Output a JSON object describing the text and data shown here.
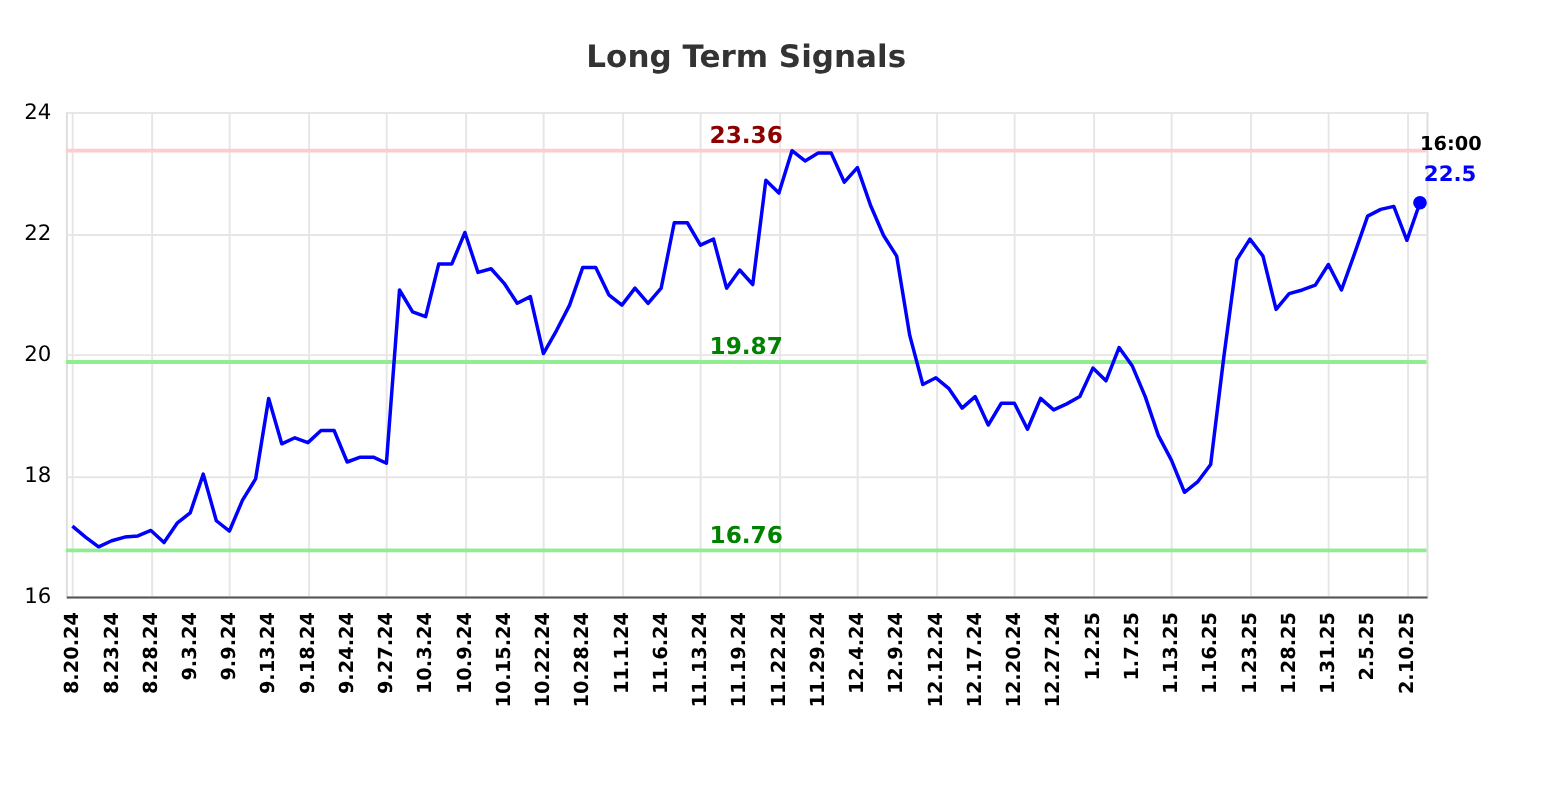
{
  "chart_data": {
    "type": "line",
    "title": "Long Term Signals",
    "categories": [
      "8.20.24",
      null,
      null,
      "8.23.24",
      null,
      null,
      "8.28.24",
      null,
      null,
      "9.3.24",
      null,
      null,
      "9.9.24",
      null,
      null,
      "9.13.24",
      null,
      null,
      "9.18.24",
      null,
      null,
      "9.24.24",
      null,
      null,
      "9.27.24",
      null,
      null,
      "10.3.24",
      null,
      null,
      "10.9.24",
      null,
      null,
      "10.15.24",
      null,
      null,
      "10.22.24",
      null,
      null,
      "10.28.24",
      null,
      null,
      "11.1.24",
      null,
      null,
      "11.6.24",
      null,
      null,
      "11.13.24",
      null,
      null,
      "11.19.24",
      null,
      null,
      "11.22.24",
      null,
      null,
      "11.29.24",
      null,
      null,
      "12.4.24",
      null,
      null,
      "12.9.24",
      null,
      null,
      "12.12.24",
      null,
      null,
      "12.17.24",
      null,
      null,
      "12.20.24",
      null,
      null,
      "12.27.24",
      null,
      null,
      "1.2.25",
      null,
      null,
      "1.7.25",
      null,
      null,
      "1.13.25",
      null,
      null,
      "1.16.25",
      null,
      null,
      "1.23.25",
      null,
      null,
      "1.28.25",
      null,
      null,
      "1.31.25",
      null,
      null,
      "2.5.25",
      null,
      null,
      "2.10.25",
      null
    ],
    "series": [
      {
        "color": "#0000ff",
        "values": [
          17.16,
          16.98,
          16.82,
          16.92,
          16.98,
          17.0,
          17.09,
          16.89,
          17.21,
          17.38,
          18.02,
          17.25,
          17.08,
          17.59,
          17.94,
          19.27,
          18.52,
          18.62,
          18.54,
          18.74,
          18.74,
          18.22,
          18.3,
          18.3,
          18.2,
          21.06,
          20.7,
          20.62,
          21.49,
          21.49,
          22.01,
          21.35,
          21.41,
          21.17,
          20.84,
          20.95,
          20.01,
          20.39,
          20.81,
          21.43,
          21.43,
          20.98,
          20.81,
          21.09,
          20.84,
          21.09,
          22.17,
          22.17,
          21.8,
          21.9,
          21.09,
          21.39,
          21.15,
          22.87,
          22.66,
          23.36,
          23.19,
          23.32,
          23.32,
          22.84,
          23.08,
          22.46,
          21.96,
          21.62,
          20.31,
          19.5,
          19.61,
          19.43,
          19.11,
          19.3,
          18.83,
          19.19,
          19.19,
          18.76,
          19.27,
          19.08,
          19.18,
          19.3,
          19.77,
          19.56,
          20.11,
          19.81,
          19.3,
          18.66,
          18.25,
          17.72,
          17.89,
          18.18,
          19.94,
          21.56,
          21.9,
          21.62,
          20.74,
          21.0,
          21.06,
          21.14,
          21.48,
          21.06,
          21.66,
          22.28,
          22.39,
          22.44,
          21.88,
          22.5
        ]
      },
      {
        "type": "scatter",
        "color": "#0000ff",
        "values": [
          null,
          null,
          null,
          null,
          null,
          null,
          null,
          null,
          null,
          null,
          null,
          null,
          null,
          null,
          null,
          null,
          null,
          null,
          null,
          null,
          null,
          null,
          null,
          null,
          null,
          null,
          null,
          null,
          null,
          null,
          null,
          null,
          null,
          null,
          null,
          null,
          null,
          null,
          null,
          null,
          null,
          null,
          null,
          null,
          null,
          null,
          null,
          null,
          null,
          null,
          null,
          null,
          null,
          null,
          null,
          null,
          null,
          null,
          null,
          null,
          null,
          null,
          null,
          null,
          null,
          null,
          null,
          null,
          null,
          null,
          null,
          null,
          null,
          null,
          null,
          null,
          null,
          null,
          null,
          null,
          null,
          null,
          null,
          null,
          null,
          null,
          null,
          null,
          null,
          null,
          null,
          null,
          null,
          null,
          null,
          null,
          null,
          null,
          null,
          null,
          null,
          null,
          null,
          22.5
        ],
        "value_labels": [
          null,
          null,
          null,
          null,
          null,
          null,
          null,
          null,
          null,
          null,
          null,
          null,
          null,
          null,
          null,
          null,
          null,
          null,
          null,
          null,
          null,
          null,
          null,
          null,
          null,
          null,
          null,
          null,
          null,
          null,
          null,
          null,
          null,
          null,
          null,
          null,
          null,
          null,
          null,
          null,
          null,
          null,
          null,
          null,
          null,
          null,
          null,
          null,
          null,
          null,
          null,
          null,
          null,
          null,
          null,
          null,
          null,
          null,
          null,
          null,
          null,
          null,
          null,
          null,
          null,
          null,
          null,
          null,
          null,
          null,
          null,
          null,
          null,
          null,
          null,
          null,
          null,
          null,
          null,
          null,
          null,
          null,
          null,
          null,
          null,
          null,
          null,
          null,
          null,
          null,
          null,
          null,
          null,
          null,
          null,
          null,
          null,
          null,
          null,
          null,
          null,
          null,
          null,
          "22.5"
        ]
      }
    ],
    "ylim": [
      16,
      24
    ],
    "yticks": [
      16,
      18,
      20,
      22,
      24
    ],
    "grid": true,
    "ref_lines": [
      {
        "axis": "y",
        "value": 23.36,
        "label": "23.36",
        "color": "#ffcccc"
      },
      {
        "axis": "y",
        "value": 19.87,
        "label": "19.87",
        "color": "#90ee90"
      },
      {
        "axis": "y",
        "value": 16.76,
        "label": "16.76",
        "color": "#90ee90"
      }
    ],
    "annotations": [
      "16:00"
    ]
  }
}
